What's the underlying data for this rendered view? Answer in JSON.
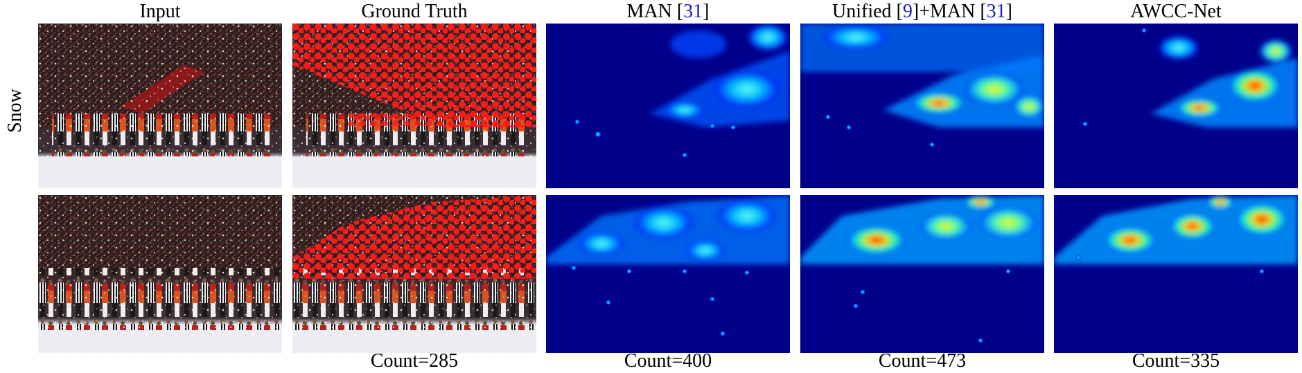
{
  "headers": {
    "input": "Input",
    "ground_truth": "Ground Truth",
    "man_text": "MAN [",
    "man_cite": "31",
    "man_close": "]",
    "unified_text": "Unified [",
    "unified_cite1": "9",
    "unified_mid": "]+MAN [",
    "unified_cite2": "31",
    "unified_close": "]",
    "awcc": "AWCC-Net"
  },
  "row_label": "Snow",
  "counts": {
    "ground_truth": "Count=285",
    "man": "Count=400",
    "unified_man": "Count=473",
    "awcc": "Count=335"
  },
  "colors": {
    "citation": "#1a1acc",
    "density_background": "#00008b",
    "density_high": "#ff0000",
    "annotation_dots": "#ff1a1a"
  }
}
